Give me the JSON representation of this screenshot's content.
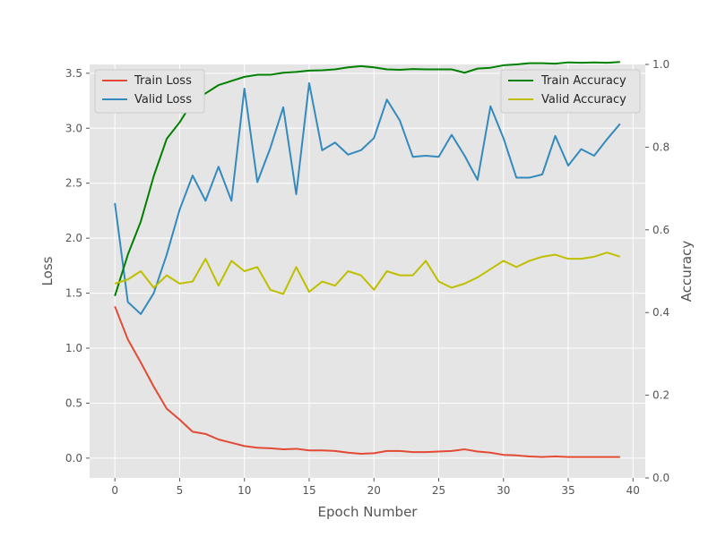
{
  "chart_data": {
    "type": "line",
    "xlabel": "Epoch Number",
    "ylabel_left": "Loss",
    "ylabel_right": "Accuracy",
    "x": [
      0,
      1,
      2,
      3,
      4,
      5,
      6,
      7,
      8,
      9,
      10,
      11,
      12,
      13,
      14,
      15,
      16,
      17,
      18,
      19,
      20,
      21,
      22,
      23,
      24,
      25,
      26,
      27,
      28,
      29,
      30,
      31,
      32,
      33,
      34,
      35,
      36,
      37,
      38,
      39
    ],
    "xlim": [
      -1.95,
      40.95
    ],
    "ylim_left": [
      -0.18,
      3.58
    ],
    "ylim_right": [
      0.0,
      1.0
    ],
    "xticks": [
      0,
      5,
      10,
      15,
      20,
      25,
      30,
      35,
      40
    ],
    "yticks_left": [
      0.0,
      0.5,
      1.0,
      1.5,
      2.0,
      2.5,
      3.0,
      3.5
    ],
    "yticks_right": [
      0.0,
      0.2,
      0.4,
      0.6,
      0.8,
      1.0
    ],
    "xtick_labels": [
      "0",
      "5",
      "10",
      "15",
      "20",
      "25",
      "30",
      "35",
      "40"
    ],
    "ytick_labels_left": [
      "0.0",
      "0.5",
      "1.0",
      "1.5",
      "2.0",
      "2.5",
      "3.0",
      "3.5"
    ],
    "ytick_labels_right": [
      "0.0",
      "0.2",
      "0.4",
      "0.6",
      "0.8",
      "1.0"
    ],
    "grid": true,
    "legend_left_position": "upper-left",
    "legend_right_position": "upper-right",
    "series": [
      {
        "name": "Train Loss",
        "axis": "left",
        "color": "#E24A33",
        "values": [
          1.38,
          1.08,
          0.87,
          0.65,
          0.45,
          0.35,
          0.24,
          0.22,
          0.17,
          0.14,
          0.11,
          0.095,
          0.09,
          0.08,
          0.085,
          0.07,
          0.07,
          0.065,
          0.05,
          0.04,
          0.045,
          0.065,
          0.065,
          0.055,
          0.055,
          0.06,
          0.065,
          0.08,
          0.06,
          0.05,
          0.03,
          0.025,
          0.015,
          0.01,
          0.015,
          0.01,
          0.01,
          0.01,
          0.01,
          0.01
        ]
      },
      {
        "name": "Valid Loss",
        "axis": "left",
        "color": "#348ABD",
        "values": [
          2.32,
          1.42,
          1.31,
          1.5,
          1.85,
          2.26,
          2.57,
          2.34,
          2.65,
          2.34,
          3.36,
          2.51,
          2.82,
          3.19,
          2.4,
          3.41,
          2.8,
          2.87,
          2.76,
          2.8,
          2.91,
          3.26,
          3.07,
          2.74,
          2.75,
          2.74,
          2.94,
          2.75,
          2.53,
          3.2,
          2.91,
          2.55,
          2.55,
          2.58,
          2.93,
          2.66,
          2.81,
          2.75,
          2.9,
          3.04
        ]
      },
      {
        "name": "Train Accuracy",
        "axis": "right",
        "color": "#008000",
        "values": [
          0.44,
          0.54,
          0.62,
          0.73,
          0.82,
          0.86,
          0.91,
          0.93,
          0.95,
          0.96,
          0.97,
          0.975,
          0.975,
          0.98,
          0.982,
          0.985,
          0.986,
          0.988,
          0.993,
          0.996,
          0.993,
          0.988,
          0.987,
          0.989,
          0.988,
          0.988,
          0.988,
          0.98,
          0.99,
          0.992,
          0.998,
          1.0,
          1.003,
          1.003,
          1.002,
          1.005,
          1.004,
          1.005,
          1.004,
          1.006
        ]
      },
      {
        "name": "Valid Accuracy",
        "axis": "right",
        "color": "#BFBF00",
        "values": [
          0.47,
          0.48,
          0.5,
          0.46,
          0.49,
          0.47,
          0.475,
          0.53,
          0.465,
          0.525,
          0.5,
          0.51,
          0.455,
          0.445,
          0.51,
          0.45,
          0.475,
          0.465,
          0.5,
          0.49,
          0.455,
          0.5,
          0.49,
          0.49,
          0.525,
          0.475,
          0.46,
          0.47,
          0.485,
          0.505,
          0.525,
          0.51,
          0.525,
          0.535,
          0.54,
          0.53,
          0.53,
          0.535,
          0.545,
          0.535
        ]
      }
    ]
  }
}
